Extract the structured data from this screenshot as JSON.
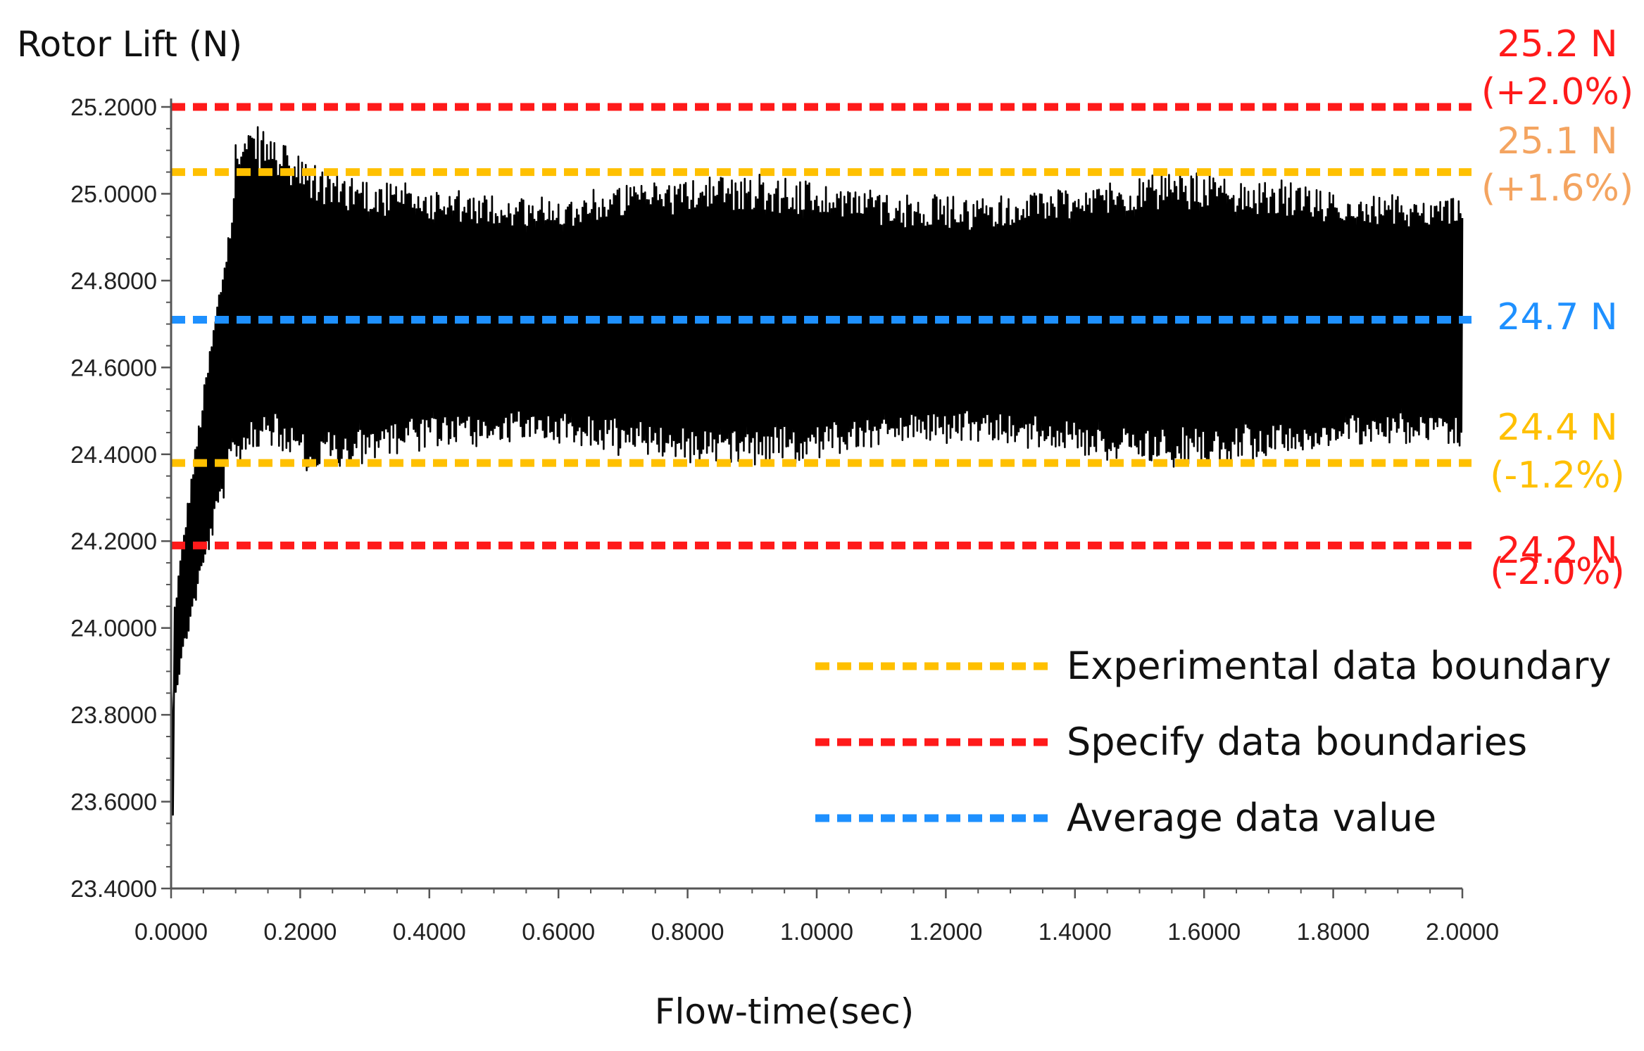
{
  "chart_data": {
    "type": "line",
    "title": "",
    "ylabel": "Rotor Lift (N)",
    "xlabel": "Flow-time(sec)",
    "xlim": [
      0,
      2
    ],
    "ylim": [
      23.4,
      25.2
    ],
    "x_ticks": [
      "0.0000",
      "0.2000",
      "0.4000",
      "0.6000",
      "0.8000",
      "1.0000",
      "1.2000",
      "1.4000",
      "1.6000",
      "1.8000",
      "2.0000"
    ],
    "y_ticks": [
      "23.4000",
      "23.6000",
      "23.8000",
      "24.0000",
      "24.2000",
      "24.4000",
      "24.6000",
      "24.8000",
      "25.0000",
      "25.2000"
    ],
    "grid": false,
    "series": [
      {
        "name": "Rotor Lift",
        "color": "#000000",
        "style": "dense oscillating signal",
        "start_value": 23.57,
        "rise_end_time": 0.1,
        "steady_mean": 24.71,
        "steady_min": 24.38,
        "steady_max": 25.06,
        "initial_peak": 25.12
      }
    ],
    "reference_lines": [
      {
        "key": "spec_upper",
        "value": 25.2,
        "label_value": "25.2 N",
        "label_pct": "(+2.0%)",
        "color": "#ff1a1a",
        "label_color": "#ff1a1a",
        "group": "spec"
      },
      {
        "key": "exp_upper",
        "value": 25.05,
        "label_value": "25.1 N",
        "label_pct": "(+1.6%)",
        "color": "#ffc000",
        "label_color": "#f4a460",
        "group": "exp"
      },
      {
        "key": "avg",
        "value": 24.71,
        "label_value": "24.7 N",
        "label_pct": "",
        "color": "#1e90ff",
        "label_color": "#1e90ff",
        "group": "avg"
      },
      {
        "key": "exp_lower",
        "value": 24.38,
        "label_value": "24.4 N",
        "label_pct": "(-1.2%)",
        "color": "#ffc000",
        "label_color": "#ffc000",
        "group": "exp"
      },
      {
        "key": "spec_lower",
        "value": 24.19,
        "label_value": "24.2 N",
        "label_pct": "(-2.0%)",
        "color": "#ff1a1a",
        "label_color": "#ff1a1a",
        "group": "spec"
      }
    ],
    "legend": {
      "placement": "lower-right",
      "entries": [
        {
          "label": "Experimental data boundary",
          "color": "#ffc000"
        },
        {
          "label": "Specify data boundaries",
          "color": "#ff1a1a"
        },
        {
          "label": "Average data value",
          "color": "#1e90ff"
        }
      ]
    }
  }
}
